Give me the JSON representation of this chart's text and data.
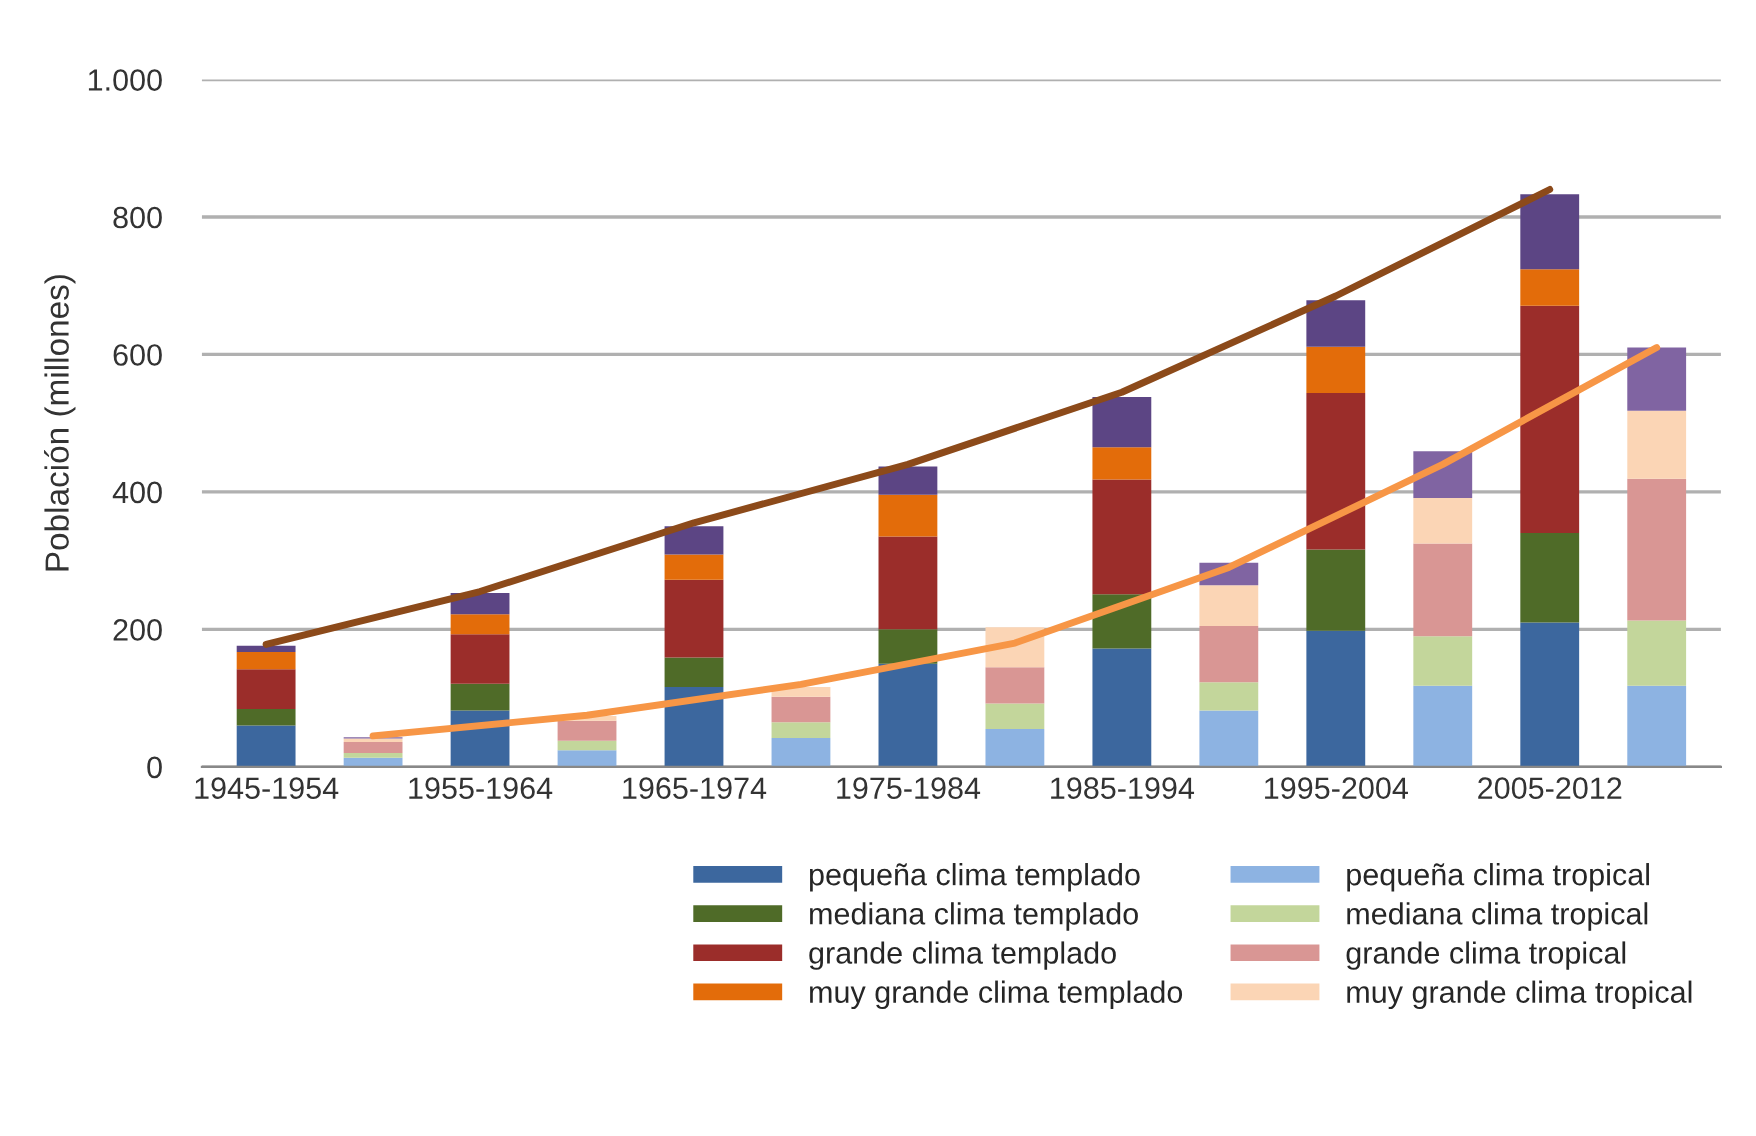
{
  "chart_data": {
    "type": "bar",
    "stacked": true,
    "ylabel": "Población (millones)",
    "categories": [
      "1945-1954",
      null,
      "1955-1964",
      null,
      "1965-1974",
      null,
      "1975-1984",
      null,
      "1985-1994",
      null,
      "1995-2004",
      null,
      "2005-2012",
      null
    ],
    "ylim": [
      0,
      1000
    ],
    "yticks": [
      0,
      200,
      400,
      600,
      800,
      {
        "value": 1000,
        "label": "1.000"
      }
    ],
    "grid": "y",
    "legend": "bottom",
    "series": [
      {
        "name": "pequeña clima templado",
        "color": "#3c679e",
        "values": [
          60,
          null,
          82,
          null,
          116,
          null,
          150,
          null,
          172,
          null,
          198,
          null,
          210,
          null
        ]
      },
      {
        "name": "mediana clima templado",
        "color": "#4f6b28",
        "values": [
          24,
          null,
          39,
          null,
          43,
          null,
          50,
          null,
          79,
          null,
          118,
          null,
          130,
          null
        ]
      },
      {
        "name": "grande clima templado",
        "color": "#9b2d2a",
        "values": [
          58,
          null,
          72,
          null,
          113,
          null,
          135,
          null,
          167,
          null,
          228,
          null,
          331,
          null
        ]
      },
      {
        "name": "muy grande clima templado",
        "color": "#e36c0a",
        "values": [
          25,
          null,
          29,
          null,
          37,
          null,
          61,
          null,
          47,
          null,
          67,
          null,
          53,
          null
        ]
      },
      {
        "color": "#5c4584",
        "values": [
          9,
          null,
          31,
          null,
          41,
          null,
          41,
          null,
          73,
          null,
          68,
          null,
          109,
          null
        ]
      },
      {
        "name": "pequeña clima tropical",
        "color": "#8db3e2",
        "values": [
          null,
          13,
          null,
          24,
          null,
          42,
          null,
          55,
          null,
          82,
          null,
          118,
          null,
          118
        ]
      },
      {
        "name": "mediana clima tropical",
        "color": "#c3d69b",
        "values": [
          null,
          7,
          null,
          14,
          null,
          23,
          null,
          37,
          null,
          41,
          null,
          72,
          null,
          95
        ]
      },
      {
        "name": "grande clima tropical",
        "color": "#d99694",
        "values": [
          null,
          16,
          null,
          29,
          null,
          37,
          null,
          53,
          null,
          82,
          null,
          135,
          null,
          206
        ]
      },
      {
        "name": "muy grande clima tropical",
        "color": "#fbd5b5",
        "values": [
          null,
          5,
          null,
          7,
          null,
          14,
          null,
          58,
          null,
          59,
          null,
          66,
          null,
          99
        ]
      },
      {
        "color": "#8064a2",
        "values": [
          null,
          2,
          null,
          null,
          null,
          null,
          null,
          null,
          null,
          33,
          null,
          68,
          null,
          92
        ]
      },
      {
        "type": "line",
        "color": "#8c4a1a",
        "values": [
          178,
          null,
          255,
          null,
          355,
          null,
          440,
          null,
          545,
          null,
          685,
          null,
          840,
          null
        ]
      },
      {
        "type": "line",
        "color": "#f79646",
        "values": [
          null,
          45,
          null,
          75,
          null,
          120,
          null,
          180,
          null,
          290,
          null,
          440,
          null,
          610
        ]
      }
    ]
  }
}
